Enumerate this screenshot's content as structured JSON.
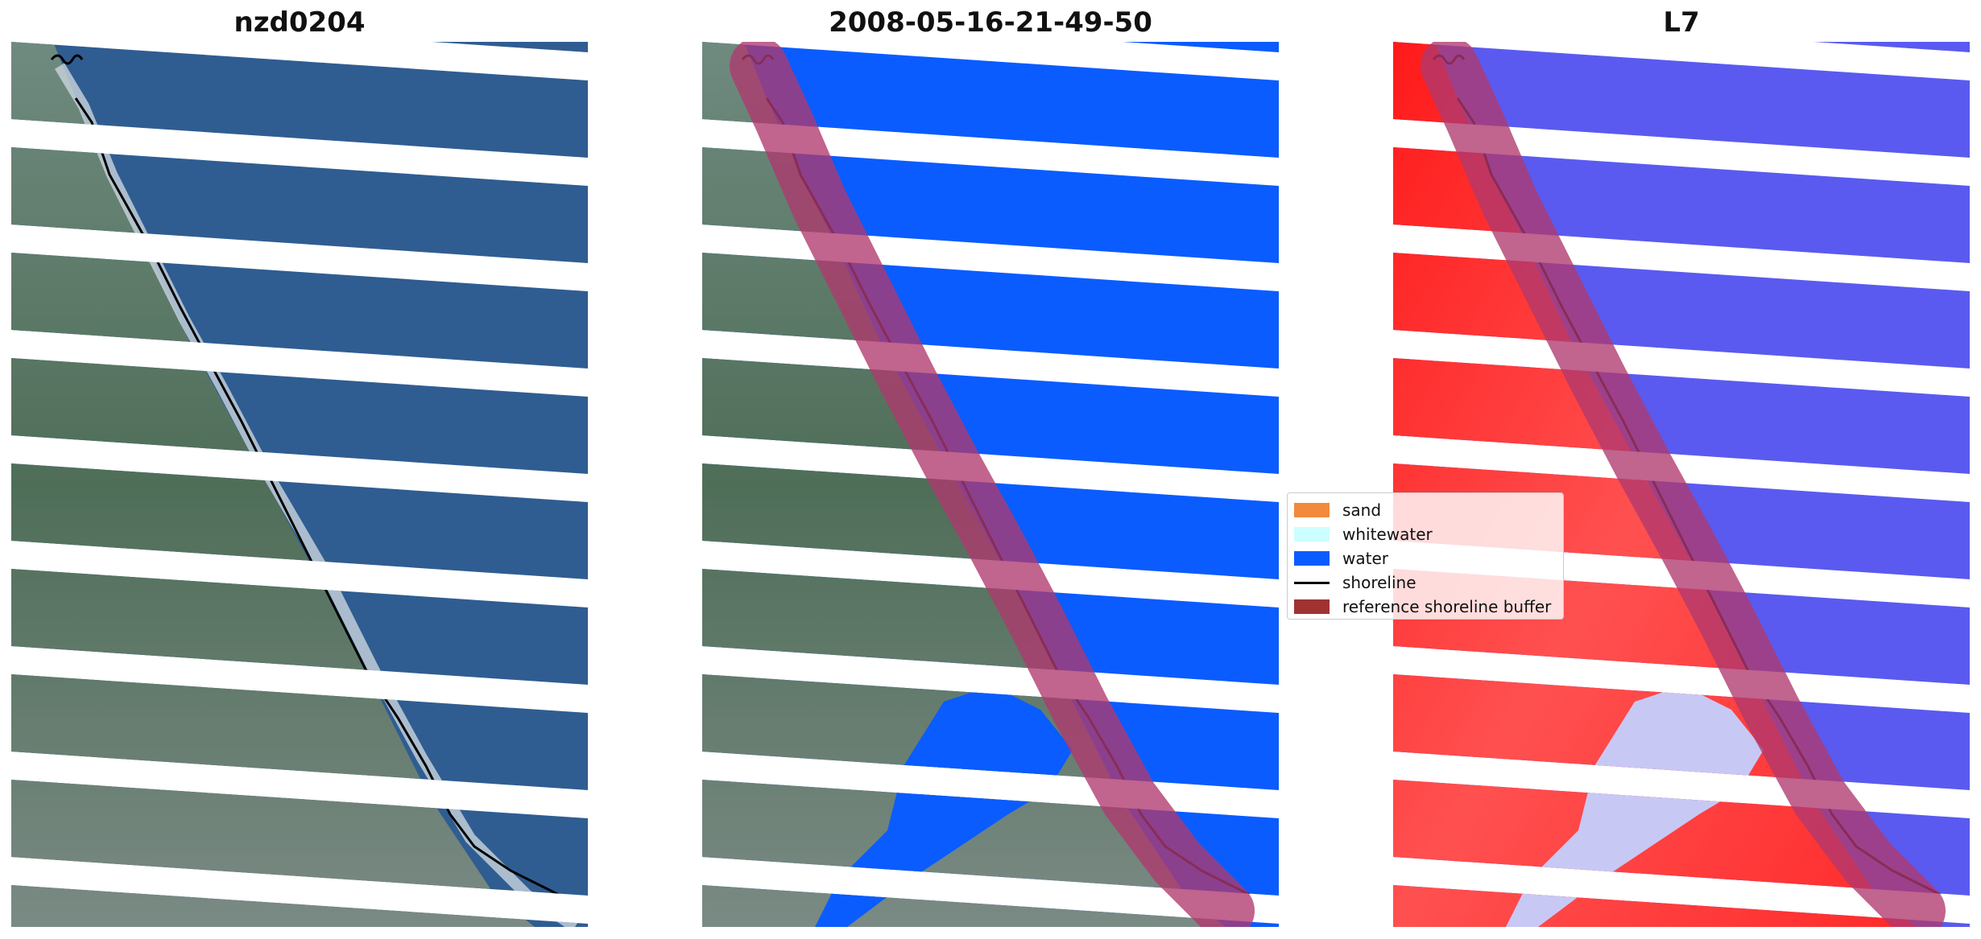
{
  "panels": [
    {
      "title": "nzd0204",
      "kind": "rgb"
    },
    {
      "title": "2008-05-16-21-49-50",
      "kind": "classified"
    },
    {
      "title": "L7",
      "kind": "index"
    }
  ],
  "legend": {
    "items": [
      {
        "label": "sand",
        "color": "#f28a3c",
        "type": "patch"
      },
      {
        "label": "whitewater",
        "color": "#ccffff",
        "type": "patch"
      },
      {
        "label": "water",
        "color": "#0a5cff",
        "type": "patch"
      },
      {
        "label": "shoreline",
        "color": "#000000",
        "type": "line"
      },
      {
        "label": "reference shoreline buffer",
        "color": "#a03232",
        "type": "patch"
      }
    ]
  },
  "colors": {
    "sea_rgb": "#2f5d91",
    "land_rgb": "#5f7a6a",
    "beach_rgb": "#c9d4dc",
    "water_class": "#0a5cff",
    "index_positive": "#ff2020",
    "index_negative": "#5a5af0",
    "buffer": "#b0386e"
  }
}
